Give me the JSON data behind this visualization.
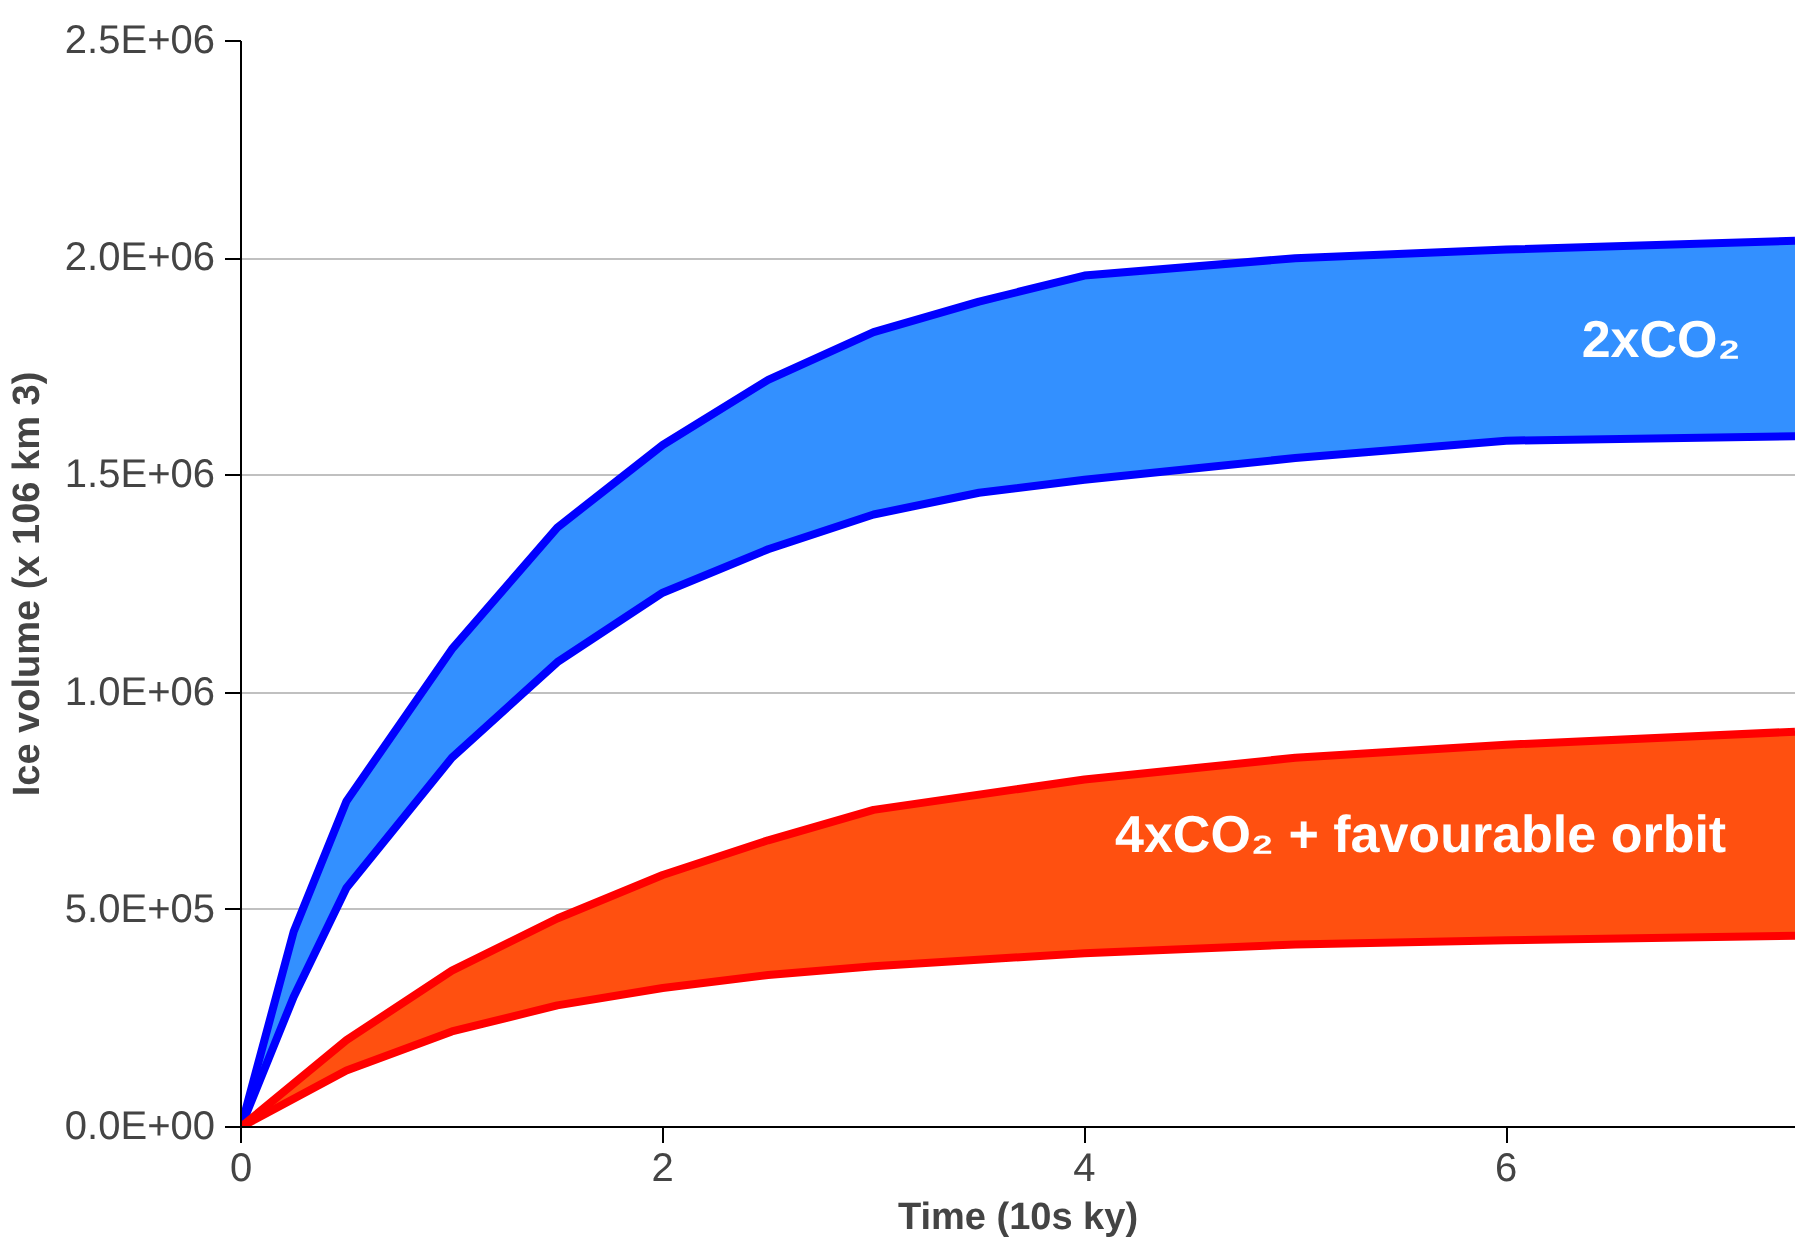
{
  "chart_data": {
    "type": "area",
    "xlabel": "Time (10s ky)",
    "ylabel": "Ice volume (x 106 km 3)",
    "xlim": [
      0,
      7.37
    ],
    "ylim": [
      0,
      2500000
    ],
    "xticks": [
      0,
      2,
      4,
      6
    ],
    "yticks": [
      {
        "value": 0,
        "label": "0.0E+00"
      },
      {
        "value": 500000,
        "label": "5.0E+05"
      },
      {
        "value": 1000000,
        "label": "1.0E+06"
      },
      {
        "value": 1500000,
        "label": "1.5E+06"
      },
      {
        "value": 2000000,
        "label": "2.0E+06"
      },
      {
        "value": 2500000,
        "label": "2.5E+06"
      }
    ],
    "grid": "y",
    "series": [
      {
        "name": "2xCO₂",
        "color": "#3390ff",
        "x": [
          0,
          0.25,
          0.5,
          1,
          1.5,
          2,
          2.5,
          3,
          3.5,
          4,
          5,
          6,
          7.37
        ],
        "values": [
          0,
          450000,
          750000,
          1100000,
          1380000,
          1570000,
          1720000,
          1830000,
          1900000,
          1960000,
          2000000,
          2020000,
          2040000
        ]
      },
      {
        "type": "line",
        "color": "#0000ff",
        "x": [
          0,
          0.25,
          0.5,
          1,
          1.5,
          2,
          2.5,
          3,
          3.5,
          4,
          5,
          6,
          7.37
        ],
        "values": [
          0,
          300000,
          550000,
          850000,
          1070000,
          1230000,
          1330000,
          1410000,
          1460000,
          1490000,
          1540000,
          1580000,
          1590000
        ]
      },
      {
        "name": "4xCO₂ + favourable  orbit",
        "color": "#ff5010",
        "x": [
          0,
          0.5,
          1,
          1.5,
          2,
          2.5,
          3,
          4,
          5,
          6,
          7.37
        ],
        "values": [
          0,
          200000,
          360000,
          480000,
          580000,
          660000,
          730000,
          800000,
          850000,
          880000,
          910000
        ]
      },
      {
        "type": "line",
        "color": "#ff0000",
        "x": [
          0,
          0.5,
          1,
          1.5,
          2,
          2.5,
          3,
          4,
          5,
          6,
          7.37
        ],
        "values": [
          0,
          130000,
          220000,
          280000,
          320000,
          350000,
          370000,
          400000,
          420000,
          430000,
          440000
        ]
      }
    ]
  }
}
